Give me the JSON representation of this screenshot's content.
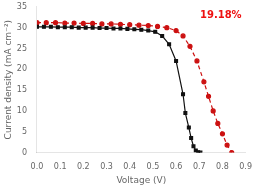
{
  "chart_data": {
    "type": "line",
    "xlabel": "Voltage (V)",
    "ylabel": "Current density (mA cm⁻²)",
    "xlim": [
      0.0,
      0.9
    ],
    "ylim": [
      0,
      35
    ],
    "xticks": [
      {
        "value": 0.0,
        "label": "0.0"
      },
      0.1,
      0.2,
      0.3,
      0.4,
      0.5,
      0.6,
      0.7,
      0.8,
      0.9
    ],
    "yticks": [
      0,
      5,
      10,
      15,
      20,
      25,
      30,
      35
    ],
    "grid": false,
    "series": [
      {
        "color": "#111111",
        "marker": "square",
        "line_style": "solid",
        "x": [
          0.0,
          0.03,
          0.06,
          0.09,
          0.12,
          0.15,
          0.18,
          0.21,
          0.24,
          0.27,
          0.3,
          0.33,
          0.36,
          0.39,
          0.42,
          0.45,
          0.48,
          0.51,
          0.54,
          0.57,
          0.6,
          0.63,
          0.64,
          0.655,
          0.665,
          0.675,
          0.685,
          0.695,
          0.705
        ],
        "values": [
          30.2,
          30.2,
          30.2,
          30.1,
          30.1,
          30.1,
          30.0,
          30.0,
          30.0,
          29.9,
          29.9,
          29.8,
          29.8,
          29.7,
          29.6,
          29.5,
          29.3,
          29.0,
          28.0,
          26.0,
          22.0,
          14.0,
          9.5,
          6.0,
          3.5,
          1.5,
          0.5,
          0.1,
          0.0
        ]
      },
      {
        "color": "#cc1111",
        "marker": "circle",
        "line_style": "dashed",
        "x": [
          0.0,
          0.04,
          0.08,
          0.12,
          0.16,
          0.2,
          0.24,
          0.28,
          0.32,
          0.36,
          0.4,
          0.44,
          0.48,
          0.52,
          0.56,
          0.6,
          0.63,
          0.66,
          0.69,
          0.72,
          0.74,
          0.76,
          0.78,
          0.8,
          0.82,
          0.84
        ],
        "values": [
          31.2,
          31.2,
          31.2,
          31.1,
          31.1,
          31.0,
          31.0,
          30.9,
          30.9,
          30.8,
          30.7,
          30.6,
          30.5,
          30.3,
          30.0,
          29.3,
          28.0,
          25.5,
          22.0,
          17.0,
          13.5,
          10.0,
          7.0,
          4.5,
          1.8,
          0.0
        ]
      }
    ],
    "annotations": [
      {
        "text": "19.18%",
        "color": "#ee1111"
      }
    ]
  }
}
